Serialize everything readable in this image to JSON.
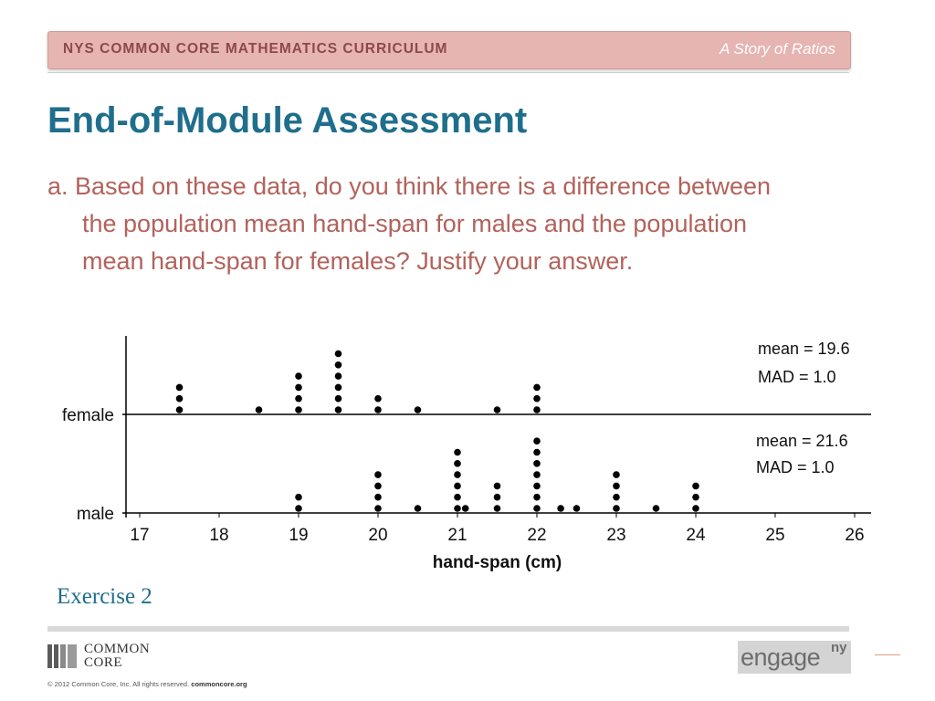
{
  "header": {
    "curriculum": "NYS COMMON CORE MATHEMATICS CURRICULUM",
    "story": "A Story of Ratios"
  },
  "slide": {
    "title": "End-of-Module Assessment",
    "question_line1": "a. Based on these data, do you think there is a difference between",
    "question_line2": "the population mean hand-span for males and the population",
    "question_line3": "mean hand-span for females? Justify your answer.",
    "exercise": "Exercise 2"
  },
  "footer": {
    "cc_line1": "COMMON",
    "cc_line2": "CORE",
    "copyright": "© 2012 Common Core, Inc. All rights reserved.",
    "copyright_site": "commoncore.org",
    "engage": "engage",
    "engage_sup": "ny"
  },
  "chart_data": {
    "type": "scatter",
    "subtype": "dot plot",
    "xlabel": "hand-span (cm)",
    "xlim": [
      17,
      26
    ],
    "xticks": [
      17,
      18,
      19,
      20,
      21,
      22,
      23,
      24,
      25,
      26
    ],
    "series": [
      {
        "name": "female",
        "annotation_mean": "mean = 19.6",
        "annotation_mad": "MAD = 1.0",
        "dots": [
          {
            "x": 17.5,
            "count": 3
          },
          {
            "x": 18.5,
            "count": 1
          },
          {
            "x": 19,
            "count": 4
          },
          {
            "x": 19.5,
            "count": 6
          },
          {
            "x": 20,
            "count": 2
          },
          {
            "x": 20.5,
            "count": 1
          },
          {
            "x": 21.5,
            "count": 1
          },
          {
            "x": 22,
            "count": 3
          }
        ]
      },
      {
        "name": "male",
        "annotation_mean": "mean = 21.6",
        "annotation_mad": "MAD = 1.0",
        "dots": [
          {
            "x": 19,
            "count": 2
          },
          {
            "x": 20,
            "count": 4
          },
          {
            "x": 20.5,
            "count": 1
          },
          {
            "x": 21,
            "count": 6
          },
          {
            "x": 21.1,
            "count": 1
          },
          {
            "x": 21.5,
            "count": 3
          },
          {
            "x": 22,
            "count": 7
          },
          {
            "x": 22.3,
            "count": 1
          },
          {
            "x": 22.5,
            "count": 1
          },
          {
            "x": 23,
            "count": 4
          },
          {
            "x": 23.5,
            "count": 1
          },
          {
            "x": 24,
            "count": 3
          }
        ]
      }
    ]
  }
}
